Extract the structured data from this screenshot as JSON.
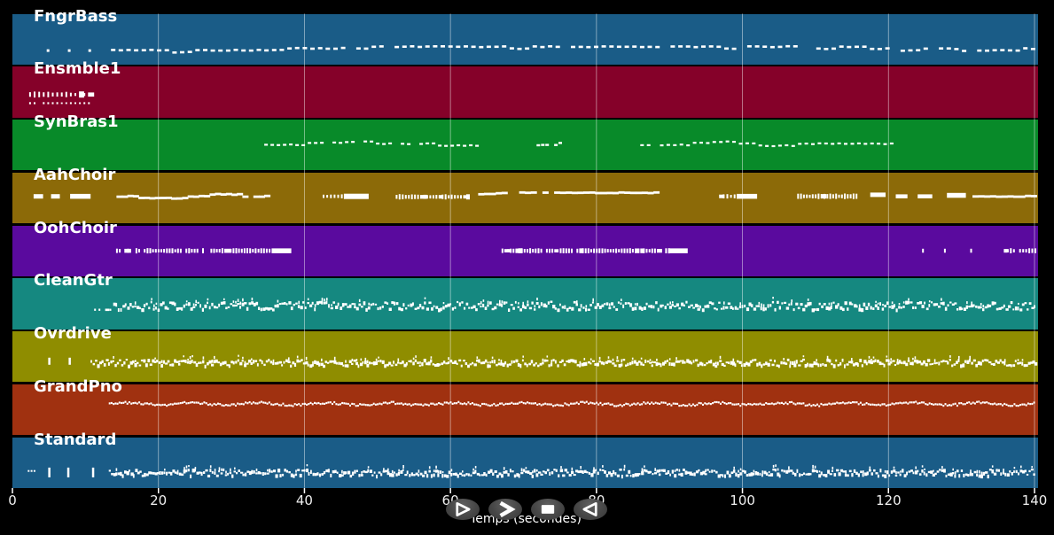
{
  "figure": {
    "xlabel": "Temps (secondes)",
    "x_ticks": [
      0,
      20,
      40,
      60,
      80,
      100,
      120,
      140
    ],
    "x_range": [
      0,
      140.5
    ],
    "background": "#000000",
    "note_color": "#ffffff",
    "grid_color": "rgba(255,255,255,0.5)",
    "tick_color": "#ffffff",
    "label_color": "#ffffff"
  },
  "transport": {
    "button_fill": "#474747",
    "buttons": [
      {
        "name": "play",
        "icon": "play-outline-icon"
      },
      {
        "name": "fast-forward",
        "icon": "fast-forward-icon"
      },
      {
        "name": "stop",
        "icon": "stop-icon"
      },
      {
        "name": "rewind",
        "icon": "rewind-outline-icon"
      }
    ]
  },
  "tracks": [
    {
      "label": "FngrBass",
      "color": "#1A5C87",
      "segments": [
        {
          "kind": "at",
          "times": [
            4.7,
            7.6,
            10.4
          ],
          "w": 3,
          "h": 3,
          "y": 0.7
        },
        {
          "kind": "dashrun",
          "start": 13.5,
          "end": 140,
          "step": 1.05,
          "w": 5,
          "h": 2.6,
          "y": 0.72,
          "jitter": 4
        }
      ]
    },
    {
      "label": "Ensmble1",
      "color": "#850129",
      "segments": [
        {
          "kind": "dense",
          "start": 2.3,
          "end": 10.7,
          "step": 0.62,
          "y": 0.55,
          "hmin": 3,
          "hmax": 7
        },
        {
          "kind": "dense",
          "start": 2.3,
          "end": 10.7,
          "step": 0.62,
          "y": 0.72,
          "hmin": 1.8,
          "hmax": 2.4
        }
      ]
    },
    {
      "label": "SynBras1",
      "color": "#088A29",
      "segments": [
        {
          "kind": "dashrun",
          "start": 34.5,
          "end": 64.5,
          "step": 0.85,
          "w": 4,
          "h": 2.2,
          "y": 0.5,
          "jitter": 3.5
        },
        {
          "kind": "dashrun",
          "start": 71.8,
          "end": 75.3,
          "step": 0.6,
          "w": 4,
          "h": 2.4,
          "y": 0.48,
          "jitter": 1.5
        },
        {
          "kind": "dashrun",
          "start": 86,
          "end": 120.5,
          "step": 0.9,
          "w": 4,
          "h": 2.2,
          "y": 0.5,
          "jitter": 3.5
        }
      ]
    },
    {
      "label": "AahChoir",
      "color": "#8C6A08",
      "segments": [
        {
          "kind": "block",
          "start": 2.9,
          "end": 4.2,
          "y": 0.47,
          "h": 5
        },
        {
          "kind": "block",
          "start": 5.3,
          "end": 6.5,
          "y": 0.47,
          "h": 5
        },
        {
          "kind": "block",
          "start": 7.9,
          "end": 10.7,
          "y": 0.47,
          "h": 5.5
        },
        {
          "kind": "dashrun",
          "start": 13.5,
          "end": 34.8,
          "step": 0.75,
          "w": 7,
          "h": 2.8,
          "y": 0.47,
          "jitter": 4
        },
        {
          "kind": "dense",
          "start": 42.5,
          "end": 45.2,
          "step": 0.5,
          "y": 0.47,
          "hmin": 3,
          "hmax": 5
        },
        {
          "kind": "block",
          "start": 45.4,
          "end": 48.8,
          "y": 0.47,
          "h": 6
        },
        {
          "kind": "dense",
          "start": 52.5,
          "end": 62.5,
          "step": 0.42,
          "y": 0.48,
          "hmin": 3.5,
          "hmax": 6.5
        },
        {
          "kind": "dashrun",
          "start": 63,
          "end": 88.5,
          "step": 0.8,
          "w": 7,
          "h": 2.8,
          "y": 0.47,
          "jitter": 4
        },
        {
          "kind": "dense",
          "start": 96.8,
          "end": 99,
          "step": 0.5,
          "y": 0.47,
          "hmin": 3,
          "hmax": 5
        },
        {
          "kind": "block",
          "start": 99.2,
          "end": 102,
          "y": 0.47,
          "h": 5.5
        },
        {
          "kind": "dense",
          "start": 107.5,
          "end": 116,
          "step": 0.4,
          "y": 0.47,
          "hmin": 3.5,
          "hmax": 6.5
        },
        {
          "kind": "block",
          "start": 117.5,
          "end": 119.6,
          "y": 0.44,
          "h": 5
        },
        {
          "kind": "block",
          "start": 121,
          "end": 122.6,
          "y": 0.47,
          "h": 4.5
        },
        {
          "kind": "block",
          "start": 124,
          "end": 126,
          "y": 0.47,
          "h": 4.5
        },
        {
          "kind": "block",
          "start": 128,
          "end": 130.6,
          "y": 0.45,
          "h": 5.5
        },
        {
          "kind": "dashrun",
          "start": 131.5,
          "end": 140,
          "step": 0.8,
          "w": 7,
          "h": 2.8,
          "y": 0.47,
          "jitter": 3
        }
      ]
    },
    {
      "label": "OohChoir",
      "color": "#5A0A9E",
      "segments": [
        {
          "kind": "dense",
          "start": 14.2,
          "end": 35.3,
          "step": 0.38,
          "y": 0.5,
          "hmin": 3.5,
          "hmax": 6
        },
        {
          "kind": "block",
          "start": 35.5,
          "end": 38.2,
          "y": 0.5,
          "h": 5.5
        },
        {
          "kind": "dense",
          "start": 67,
          "end": 89.8,
          "step": 0.38,
          "y": 0.5,
          "hmin": 3.5,
          "hmax": 6
        },
        {
          "kind": "block",
          "start": 90,
          "end": 92.5,
          "y": 0.5,
          "h": 5.5
        },
        {
          "kind": "at",
          "times": [
            124.6,
            127.6,
            131.2
          ],
          "w": 2,
          "h": 4.5,
          "y": 0.46
        },
        {
          "kind": "dense",
          "start": 135.8,
          "end": 140,
          "step": 0.42,
          "y": 0.5,
          "hmin": 3.5,
          "hmax": 6
        }
      ]
    },
    {
      "label": "CleanGtr",
      "color": "#158880",
      "segments": [
        {
          "kind": "dense",
          "start": 11.2,
          "end": 13.4,
          "step": 0.3,
          "y": 0.62,
          "hmin": 1.8,
          "hmax": 2.6
        },
        {
          "kind": "spiky",
          "start": 13.8,
          "end": 140,
          "step": 0.32,
          "y": 0.52,
          "jitter": 4.5
        }
      ]
    },
    {
      "label": "Ovrdrive",
      "color": "#8F8D00",
      "segments": [
        {
          "kind": "at",
          "times": [
            4.9,
            7.7
          ],
          "w": 2.5,
          "h": 8,
          "y": 0.52
        },
        {
          "kind": "spiky",
          "start": 10.7,
          "end": 140,
          "step": 0.3,
          "y": 0.6,
          "jitter": 3.5
        }
      ]
    },
    {
      "label": "GrandPno",
      "color": "#A03110",
      "segments": [
        {
          "kind": "fine",
          "start": 13.2,
          "end": 140,
          "step": 0.27,
          "y": 0.37
        }
      ]
    },
    {
      "label": "Standard",
      "color": "#1A5C87",
      "segments": [
        {
          "kind": "at",
          "times": [
            2.1,
            2.5,
            2.9
          ],
          "w": 2,
          "h": 2,
          "y": 0.65
        },
        {
          "kind": "at",
          "times": [
            4.9,
            7.5,
            10.9
          ],
          "w": 2.5,
          "h": 11,
          "y": 0.6
        },
        {
          "kind": "spiky",
          "start": 13.2,
          "end": 140,
          "step": 0.3,
          "y": 0.68,
          "jitter": 3.5
        }
      ]
    }
  ]
}
